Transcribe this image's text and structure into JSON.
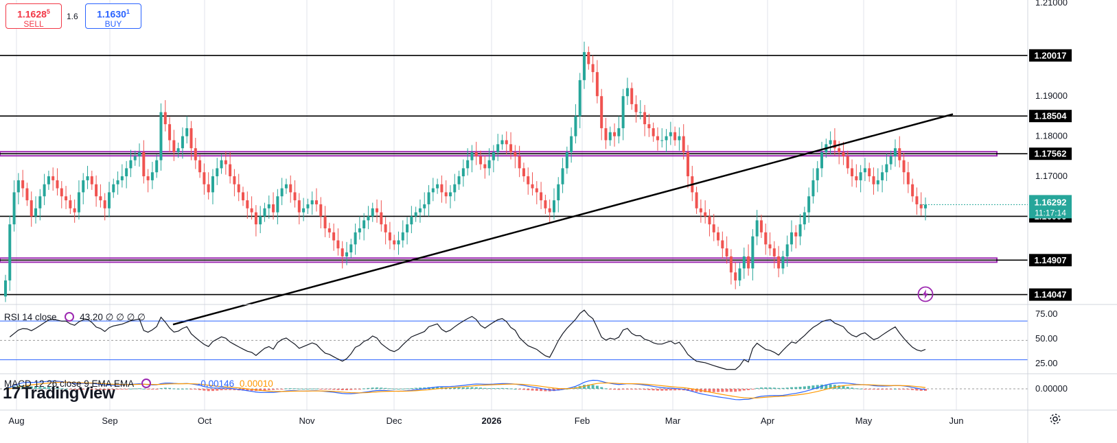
{
  "trade_panel": {
    "sell_price": "1.1628",
    "sell_price_sup": "5",
    "sell_label": "SELL",
    "spread": "1.6",
    "buy_price": "1.1630",
    "buy_price_sup": "1",
    "buy_label": "BUY"
  },
  "price_axis": {
    "top_partial_label": "1.21000",
    "ticks": [
      "1.19000",
      "1.18000",
      "1.17000"
    ],
    "level_labels": [
      "1.20017",
      "1.18504",
      "1.17562",
      "1.16000",
      "1.14907",
      "1.14047"
    ],
    "current_price": "1.16292",
    "countdown": "11:17:14"
  },
  "rsi_legend": {
    "name": "RSI 14 close",
    "value": "43.20",
    "extras": "∅ ∅ ∅ ∅"
  },
  "macd_legend": {
    "name": "MACD 12 26 close 9 EMA EMA",
    "value_macd": "-0.00146",
    "value_signal": "0.00010"
  },
  "rsi_axis": [
    "75.00",
    "50.00",
    "25.00"
  ],
  "macd_axis": [
    "0.00000"
  ],
  "time_axis": [
    "Aug",
    "Sep",
    "Oct",
    "Nov",
    "Dec",
    "2026",
    "Feb",
    "Mar",
    "Apr",
    "May",
    "Jun"
  ],
  "logo": {
    "mark": "17",
    "text": "TradingView"
  },
  "icons": {
    "settings": "gear-icon",
    "flash": "lightning-icon",
    "indicator": "cycle-icon"
  },
  "colors": {
    "up": "#26a69a",
    "down": "#f05350",
    "support": "#000000",
    "zone": "#9c27b0",
    "rsi_band": "#2962ff",
    "macd_line": "#2962ff",
    "signal_line": "#ff9800",
    "price_tag": "#26a69a"
  },
  "chart_data": {
    "type": "candlestick",
    "symbol_timeframe": "daily",
    "x_range": [
      "Aug",
      "Jun"
    ],
    "ylim": [
      1.138,
      1.214
    ],
    "horizontal_levels": [
      1.20017,
      1.18504,
      1.17562,
      1.16,
      1.14907,
      1.14047
    ],
    "highlighted_zones": [
      1.17562,
      1.14907
    ],
    "trendline": {
      "from": [
        "2025-10-08",
        1.133
      ],
      "to": [
        "2026-05-24",
        1.1855
      ]
    },
    "current_price": 1.16292,
    "closes_approx": [
      1.144,
      1.158,
      1.166,
      1.169,
      1.167,
      1.164,
      1.16,
      1.162,
      1.165,
      1.168,
      1.17,
      1.169,
      1.167,
      1.165,
      1.164,
      1.162,
      1.161,
      1.166,
      1.169,
      1.17,
      1.168,
      1.165,
      1.164,
      1.162,
      1.166,
      1.168,
      1.169,
      1.17,
      1.172,
      1.174,
      1.175,
      1.176,
      1.17,
      1.169,
      1.171,
      1.174,
      1.186,
      1.183,
      1.179,
      1.176,
      1.177,
      1.18,
      1.182,
      1.177,
      1.174,
      1.171,
      1.168,
      1.166,
      1.17,
      1.172,
      1.174,
      1.173,
      1.17,
      1.168,
      1.166,
      1.164,
      1.162,
      1.161,
      1.158,
      1.16,
      1.162,
      1.163,
      1.161,
      1.165,
      1.167,
      1.168,
      1.166,
      1.164,
      1.161,
      1.162,
      1.163,
      1.164,
      1.163,
      1.16,
      1.157,
      1.156,
      1.154,
      1.152,
      1.15,
      1.151,
      1.153,
      1.156,
      1.157,
      1.159,
      1.16,
      1.162,
      1.161,
      1.158,
      1.156,
      1.154,
      1.153,
      1.154,
      1.156,
      1.158,
      1.16,
      1.161,
      1.162,
      1.163,
      1.166,
      1.167,
      1.168,
      1.166,
      1.165,
      1.166,
      1.168,
      1.17,
      1.172,
      1.174,
      1.176,
      1.175,
      1.173,
      1.172,
      1.174,
      1.176,
      1.178,
      1.179,
      1.178,
      1.176,
      1.175,
      1.172,
      1.17,
      1.168,
      1.167,
      1.166,
      1.164,
      1.162,
      1.161,
      1.164,
      1.168,
      1.172,
      1.176,
      1.18,
      1.185,
      1.194,
      1.201,
      1.198,
      1.196,
      1.19,
      1.182,
      1.179,
      1.181,
      1.18,
      1.182,
      1.19,
      1.192,
      1.188,
      1.186,
      1.186,
      1.183,
      1.182,
      1.18,
      1.179,
      1.179,
      1.18,
      1.181,
      1.179,
      1.18,
      1.176,
      1.17,
      1.166,
      1.162,
      1.161,
      1.16,
      1.158,
      1.156,
      1.154,
      1.152,
      1.15,
      1.146,
      1.144,
      1.147,
      1.15,
      1.147,
      1.155,
      1.159,
      1.156,
      1.153,
      1.152,
      1.15,
      1.147,
      1.15,
      1.153,
      1.156,
      1.155,
      1.158,
      1.161,
      1.165,
      1.169,
      1.172,
      1.176,
      1.178,
      1.179,
      1.177,
      1.176,
      1.175,
      1.172,
      1.17,
      1.169,
      1.171,
      1.172,
      1.17,
      1.168,
      1.169,
      1.171,
      1.173,
      1.175,
      1.177,
      1.174,
      1.171,
      1.168,
      1.165,
      1.163,
      1.162,
      1.1629
    ],
    "rsi": {
      "period": 14,
      "last": 43.2,
      "bands": [
        70,
        30
      ],
      "mid": 50
    },
    "macd": {
      "fast": 12,
      "slow": 26,
      "signal": 9,
      "macd_last": -0.00146,
      "signal_last": 0.0001
    }
  }
}
